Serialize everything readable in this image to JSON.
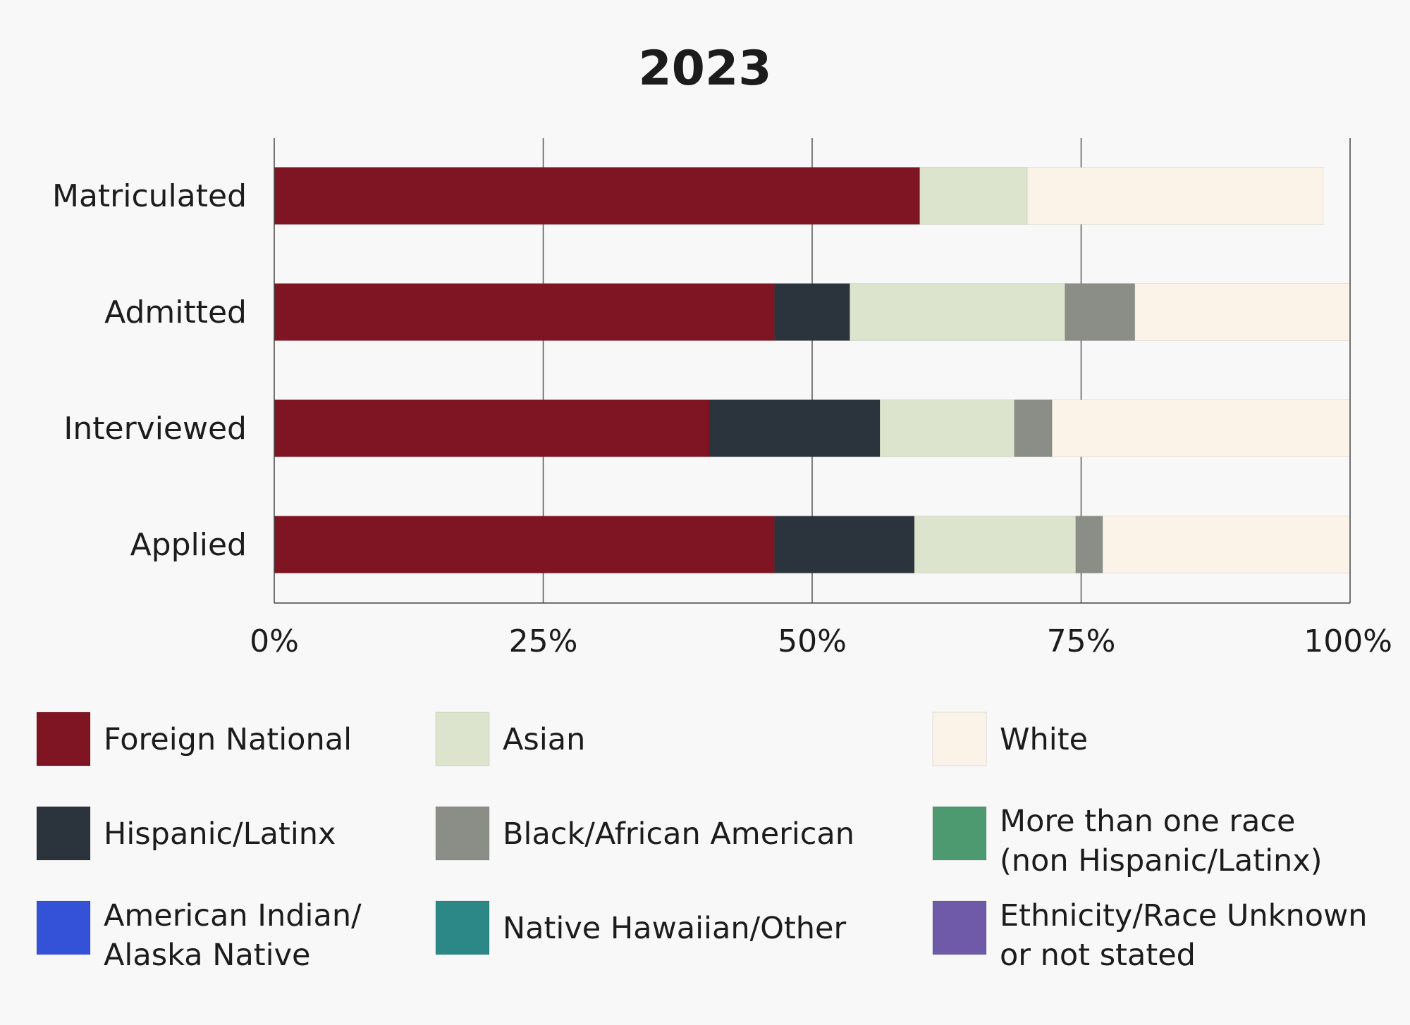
{
  "chart_data": {
    "type": "bar",
    "orientation": "horizontal",
    "stacked": true,
    "title": "2023",
    "categories": [
      "Matriculated",
      "Admitted",
      "Interviewed",
      "Applied"
    ],
    "xlim": [
      0,
      100
    ],
    "xticks": [
      "0%",
      "25%",
      "50%",
      "75%",
      "100%"
    ],
    "xtick_values": [
      0,
      25,
      50,
      75,
      100
    ],
    "grid": "vertical",
    "legend_position": "bottom",
    "series": [
      {
        "name": "Foreign National",
        "color": "#7f1422",
        "values": [
          60,
          46.5,
          40.5,
          46.5
        ]
      },
      {
        "name": "Hispanic/Latinx",
        "color": "#2b343d",
        "values": [
          0,
          7,
          15.8,
          13
        ]
      },
      {
        "name": "Asian",
        "color": "#dde4cd",
        "values": [
          10,
          20,
          12.5,
          15
        ]
      },
      {
        "name": "Black/African American",
        "color": "#8b8e86",
        "values": [
          0,
          6.5,
          3.5,
          2.5
        ]
      },
      {
        "name": "White",
        "color": "#fcf3e8",
        "values": [
          27.5,
          20,
          27.7,
          23
        ]
      },
      {
        "name": "More than one race (non Hispanic/Latinx)",
        "color": "#4e9a70",
        "values": [
          0,
          0,
          0,
          0
        ]
      },
      {
        "name": "American Indian/ Alaska Native",
        "color": "#3352d8",
        "values": [
          0,
          0,
          0,
          0
        ]
      },
      {
        "name": "Native Hawaiian/Other",
        "color": "#2c8787",
        "values": [
          0,
          0,
          0,
          0
        ]
      },
      {
        "name": "Ethnicity/Race Unknown or not stated",
        "color": "#6e5aa8",
        "values": [
          0,
          0,
          0,
          0
        ]
      }
    ],
    "legend": [
      {
        "lines": [
          "Foreign National"
        ],
        "color": "#7f1422"
      },
      {
        "lines": [
          "Asian"
        ],
        "color": "#dde4cd"
      },
      {
        "lines": [
          "White"
        ],
        "color": "#fcf3e8"
      },
      {
        "lines": [
          "Hispanic/Latinx"
        ],
        "color": "#2b343d"
      },
      {
        "lines": [
          "Black/African American"
        ],
        "color": "#8b8e86"
      },
      {
        "lines": [
          "More than one race",
          "(non Hispanic/Latinx)"
        ],
        "color": "#4e9a70"
      },
      {
        "lines": [
          "American Indian/",
          "Alaska Native"
        ],
        "color": "#3352d8"
      },
      {
        "lines": [
          "Native Hawaiian/Other"
        ],
        "color": "#2c8787"
      },
      {
        "lines": [
          "Ethnicity/Race Unknown",
          "or not stated"
        ],
        "color": "#6e5aa8"
      }
    ]
  }
}
